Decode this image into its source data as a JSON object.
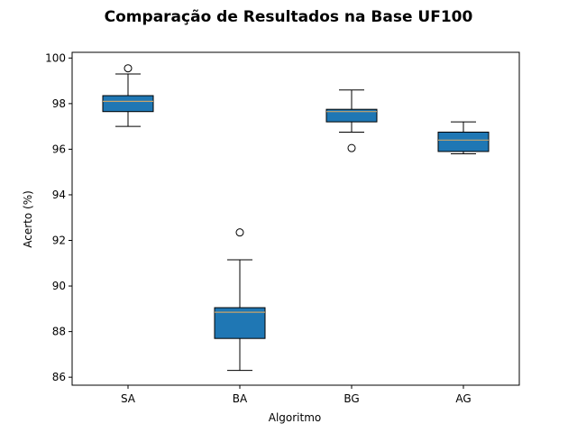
{
  "chart_data": {
    "type": "box",
    "title": "Comparação de Resultados na Base UF100",
    "xlabel": "Algoritmo",
    "ylabel": "Acerto (%)",
    "ylim": [
      85.65,
      100.25
    ],
    "yticks": [
      86,
      88,
      90,
      92,
      94,
      96,
      98,
      100
    ],
    "categories": [
      "SA",
      "BA",
      "BG",
      "AG"
    ],
    "boxes": [
      {
        "name": "SA",
        "whisker_low": 97.0,
        "q1": 97.65,
        "median": 98.1,
        "q3": 98.35,
        "whisker_high": 99.3,
        "outliers": [
          99.55
        ]
      },
      {
        "name": "BA",
        "whisker_low": 86.3,
        "q1": 87.7,
        "median": 88.85,
        "q3": 89.05,
        "whisker_high": 91.15,
        "outliers": [
          92.35
        ]
      },
      {
        "name": "BG",
        "whisker_low": 96.75,
        "q1": 97.2,
        "median": 97.65,
        "q3": 97.75,
        "whisker_high": 98.6,
        "outliers": [
          96.05
        ]
      },
      {
        "name": "AG",
        "whisker_low": 95.8,
        "q1": 95.9,
        "median": 96.4,
        "q3": 96.75,
        "whisker_high": 97.2,
        "outliers": []
      }
    ],
    "colors": {
      "box_fill": "#1f77b4",
      "median": "#c8a46a",
      "line": "#000000"
    }
  }
}
